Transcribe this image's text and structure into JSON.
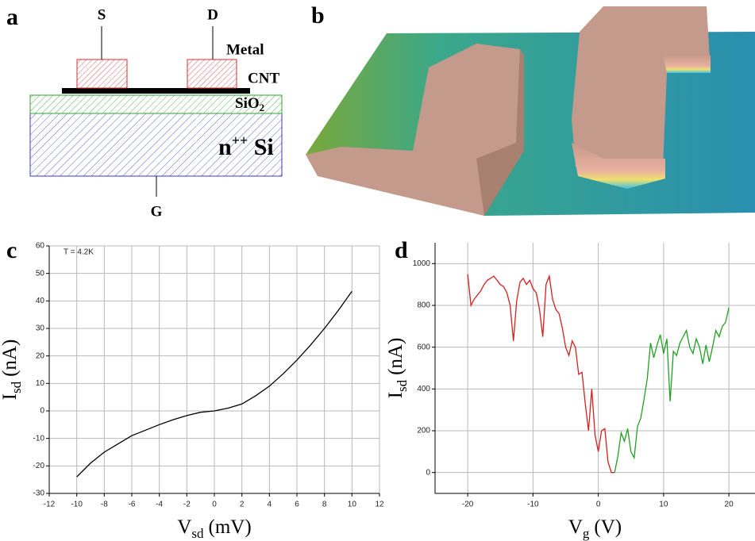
{
  "diagram": {
    "panel": "a",
    "source": "S",
    "drain": "D",
    "metal": "Metal",
    "cnt": "CNT",
    "oxide": {
      "main": "SiO",
      "sub": "2"
    },
    "substrate": {
      "main": "n",
      "sup": "++",
      "rest": " Si"
    },
    "gate": "G"
  },
  "image": {
    "panel": "b"
  },
  "chart_data": [
    {
      "type": "line",
      "panel": "c",
      "annotation": "T = 4.2K",
      "xlabel": {
        "symbol": "V",
        "sub": "sd",
        "unit": "(mV)"
      },
      "ylabel": {
        "symbol": "I",
        "sub": "sd",
        "unit": "(nA)"
      },
      "x": [
        -10,
        -9,
        -8,
        -7,
        -6,
        -5,
        -4,
        -3,
        -2,
        -1,
        0,
        1,
        2,
        3,
        4,
        5,
        6,
        7,
        8,
        9,
        10
      ],
      "values": [
        -24,
        -19,
        -15,
        -12,
        -9,
        -7,
        -5,
        -3.2,
        -1.7,
        -0.5,
        0,
        1,
        2.5,
        5.5,
        9,
        13.5,
        18.5,
        24,
        30,
        36.5,
        43.5
      ],
      "color": "#000000",
      "xlim": [
        -12,
        12
      ],
      "ylim": [
        -30,
        60
      ],
      "xticks": [
        -12,
        -10,
        -8,
        -6,
        -4,
        -2,
        0,
        2,
        4,
        6,
        8,
        10,
        12
      ],
      "yticks": [
        -30,
        -20,
        -10,
        0,
        10,
        20,
        30,
        40,
        50,
        60
      ],
      "grid": true
    },
    {
      "type": "line",
      "panel": "d",
      "xlabel": {
        "symbol": "V",
        "sub": "g",
        "unit": "(V)"
      },
      "ylabel": {
        "symbol": "I",
        "sub": "sd",
        "unit": "(nA)"
      },
      "series": [
        {
          "color": "#d42020",
          "x": [
            -20,
            -19.5,
            -19,
            -18.5,
            -18,
            -17.5,
            -17,
            -16.5,
            -16,
            -15.5,
            -15,
            -14.5,
            -14,
            -13.5,
            -13,
            -12.5,
            -12,
            -11.5,
            -11,
            -10.5,
            -10,
            -9.5,
            -9,
            -8.5,
            -8,
            -7.5,
            -7,
            -6.5,
            -6,
            -5.5,
            -5,
            -4.5,
            -4,
            -3.5,
            -3,
            -2.5,
            -2,
            -1.5,
            -1,
            -0.5,
            0,
            0.5,
            1,
            1.5,
            2,
            2.5
          ],
          "values": [
            950,
            800,
            830,
            850,
            870,
            900,
            920,
            930,
            940,
            920,
            900,
            890,
            860,
            800,
            630,
            820,
            910,
            930,
            900,
            920,
            880,
            860,
            780,
            650,
            900,
            940,
            830,
            780,
            760,
            690,
            600,
            560,
            630,
            600,
            470,
            480,
            330,
            200,
            400,
            180,
            100,
            200,
            210,
            50,
            0,
            0
          ]
        },
        {
          "color": "#22a022",
          "x": [
            2.5,
            3,
            3.5,
            4,
            4.5,
            5,
            5.5,
            6,
            6.5,
            7,
            7.5,
            8,
            8.5,
            9,
            9.5,
            10,
            10.5,
            11,
            11.5,
            12,
            12.5,
            13,
            13.5,
            14,
            14.5,
            15,
            15.5,
            16,
            16.5,
            17,
            17.5,
            18,
            18.5,
            19,
            19.5,
            20
          ],
          "values": [
            0,
            80,
            190,
            150,
            210,
            100,
            70,
            220,
            260,
            350,
            450,
            620,
            550,
            610,
            660,
            570,
            640,
            340,
            580,
            560,
            620,
            650,
            680,
            600,
            570,
            640,
            600,
            520,
            610,
            530,
            600,
            680,
            650,
            700,
            720,
            790
          ]
        }
      ],
      "xlim": [
        -25,
        24
      ],
      "ylim": [
        -100,
        1100
      ],
      "xticks": [
        -20,
        -10,
        0,
        10,
        20
      ],
      "yticks": [
        0,
        200,
        400,
        600,
        800,
        1000
      ],
      "grid": true
    }
  ]
}
